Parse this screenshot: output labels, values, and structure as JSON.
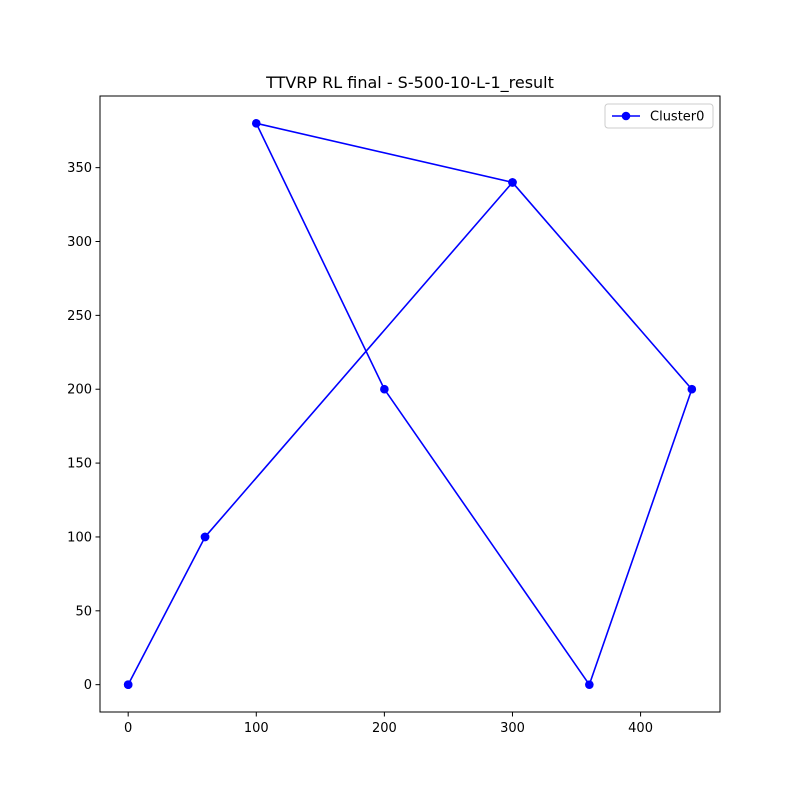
{
  "chart_data": {
    "type": "line",
    "title": "TTVRP RL final - S-500-10-L-1_result",
    "xlabel": "",
    "ylabel": "",
    "xlim": [
      -22,
      462
    ],
    "ylim": [
      -18.5,
      398.5
    ],
    "xticks": [
      0,
      100,
      200,
      300,
      400
    ],
    "yticks": [
      0,
      50,
      100,
      150,
      200,
      250,
      300,
      350
    ],
    "xtick_labels": [
      "0",
      "100",
      "200",
      "300",
      "400"
    ],
    "ytick_labels": [
      "0",
      "50",
      "100",
      "150",
      "200",
      "250",
      "300",
      "350"
    ],
    "grid": false,
    "legend_position": "top-right",
    "series": [
      {
        "name": "Cluster0",
        "color": "#0000ff",
        "marker": "circle",
        "points": [
          {
            "x": 0,
            "y": 0
          },
          {
            "x": 60,
            "y": 100
          },
          {
            "x": 300,
            "y": 340
          },
          {
            "x": 100,
            "y": 380
          },
          {
            "x": 200,
            "y": 200
          },
          {
            "x": 360,
            "y": 0
          },
          {
            "x": 440,
            "y": 200
          },
          {
            "x": 300,
            "y": 340
          },
          {
            "x": 60,
            "y": 100
          },
          {
            "x": 0,
            "y": 0
          }
        ]
      }
    ]
  }
}
